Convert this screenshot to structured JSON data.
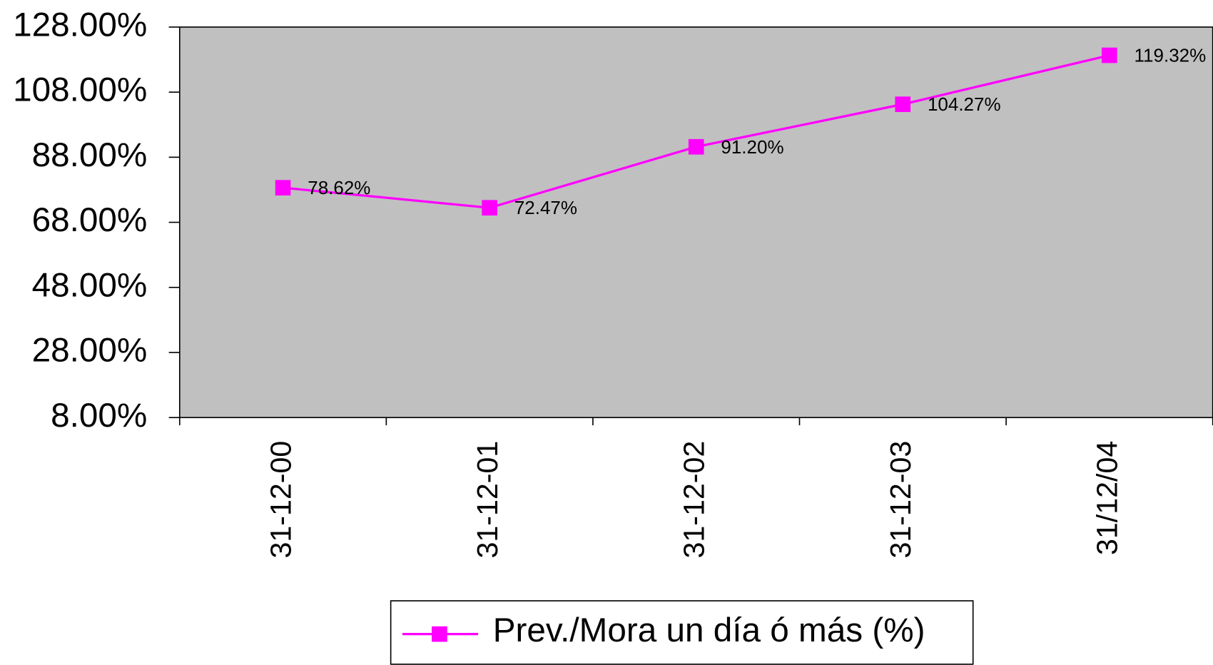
{
  "chart_data": {
    "type": "line",
    "categories": [
      "31-12-00",
      "31-12-01",
      "31-12-02",
      "31-12-03",
      "31/12/04"
    ],
    "series": [
      {
        "name": "Prev./Mora un día ó más (%)",
        "color": "#ff00ff",
        "values": [
          78.62,
          72.47,
          91.2,
          104.27,
          119.32
        ],
        "value_labels": [
          "78.62%",
          "72.47%",
          "91.20%",
          "104.27%",
          "119.32%"
        ]
      }
    ],
    "ylim": [
      8,
      128
    ],
    "yticks": [
      {
        "value": 8,
        "label": "8.00%"
      },
      {
        "value": 28,
        "label": "28.00%"
      },
      {
        "value": 48,
        "label": "48.00%"
      },
      {
        "value": 68,
        "label": "68.00%"
      },
      {
        "value": 88,
        "label": "88.00%"
      },
      {
        "value": 108,
        "label": "108.00%"
      },
      {
        "value": 128,
        "label": "128.00%"
      }
    ],
    "plot_background": "#c0c0c0"
  }
}
